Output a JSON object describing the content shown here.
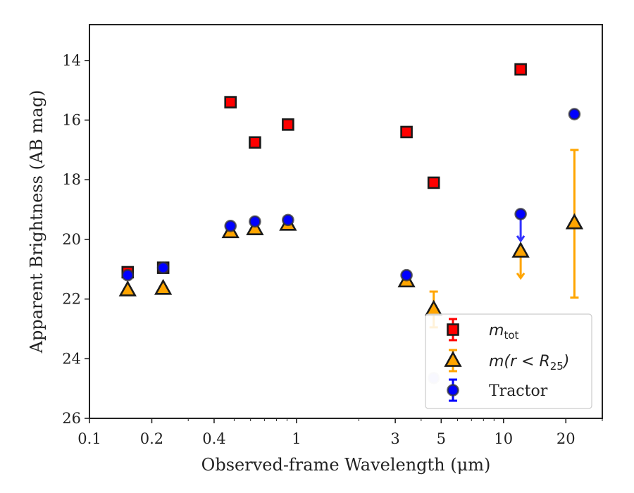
{
  "chart_data": {
    "type": "scatter",
    "xlabel": "Observed-frame Wavelength (μm)",
    "ylabel": "Apparent Brightness (AB mag)",
    "x_scale": "log",
    "xlim": [
      0.1,
      30
    ],
    "ylim": [
      26,
      12.8
    ],
    "y_inverted": true,
    "x_ticks": [
      {
        "value": 0.1,
        "label": "0.1"
      },
      {
        "value": 0.2,
        "label": "0.2"
      },
      {
        "value": 0.4,
        "label": "0.4"
      },
      {
        "value": 1,
        "label": "1"
      },
      {
        "value": 3,
        "label": "3"
      },
      {
        "value": 5,
        "label": "5"
      },
      {
        "value": 10,
        "label": "10"
      },
      {
        "value": 20,
        "label": "20"
      }
    ],
    "y_ticks": [
      {
        "value": 14,
        "label": "14"
      },
      {
        "value": 16,
        "label": "16"
      },
      {
        "value": 18,
        "label": "18"
      },
      {
        "value": 20,
        "label": "20"
      },
      {
        "value": 22,
        "label": "22"
      },
      {
        "value": 24,
        "label": "24"
      },
      {
        "value": 26,
        "label": "26"
      }
    ],
    "legend_position": "lower-right",
    "series": [
      {
        "name": "m_tot",
        "marker": "square",
        "color": "#ff0000",
        "edge_color": "#1a1a1a",
        "points": [
          {
            "x": 0.153,
            "y": 21.1
          },
          {
            "x": 0.227,
            "y": 20.95
          },
          {
            "x": 0.48,
            "y": 15.4
          },
          {
            "x": 0.63,
            "y": 16.75
          },
          {
            "x": 0.91,
            "y": 16.15
          },
          {
            "x": 3.4,
            "y": 16.4
          },
          {
            "x": 4.6,
            "y": 18.1
          },
          {
            "x": 12.1,
            "y": 14.3
          }
        ]
      },
      {
        "name": "m(r < R_25)",
        "marker": "triangle",
        "color": "#ffa500",
        "edge_color": "#1a1a1a",
        "points": [
          {
            "x": 0.153,
            "y": 21.7
          },
          {
            "x": 0.227,
            "y": 21.65
          },
          {
            "x": 0.48,
            "y": 19.75
          },
          {
            "x": 0.63,
            "y": 19.65
          },
          {
            "x": 0.91,
            "y": 19.5
          },
          {
            "x": 3.4,
            "y": 21.4
          },
          {
            "x": 4.6,
            "y": 22.35,
            "yerr": 0.6
          },
          {
            "x": 12.1,
            "y": 20.4,
            "upper_limit": true
          },
          {
            "x": 22.0,
            "y": 19.45,
            "yerr_low": 2.45,
            "yerr_high": 2.5
          }
        ]
      },
      {
        "name": "Tractor",
        "marker": "circle",
        "color": "#0000ff",
        "edge_color": "#333333",
        "points": [
          {
            "x": 0.153,
            "y": 21.2
          },
          {
            "x": 0.227,
            "y": 20.95
          },
          {
            "x": 0.48,
            "y": 19.55
          },
          {
            "x": 0.63,
            "y": 19.4
          },
          {
            "x": 0.91,
            "y": 19.35
          },
          {
            "x": 3.4,
            "y": 21.2
          },
          {
            "x": 4.6,
            "y": 24.65,
            "faint": true
          },
          {
            "x": 12.1,
            "y": 19.15,
            "upper_limit": true
          },
          {
            "x": 22.0,
            "y": 15.8
          }
        ]
      }
    ],
    "legend": [
      {
        "series": "m_tot",
        "main": "m",
        "sub": "tot",
        "text": "m_tot"
      },
      {
        "series": "m(r < R_25)",
        "main": "m(r < R",
        "sub": "25",
        "tail": ")",
        "text": "m(r < R_25)"
      },
      {
        "series": "Tractor",
        "text": "Tractor"
      }
    ]
  }
}
